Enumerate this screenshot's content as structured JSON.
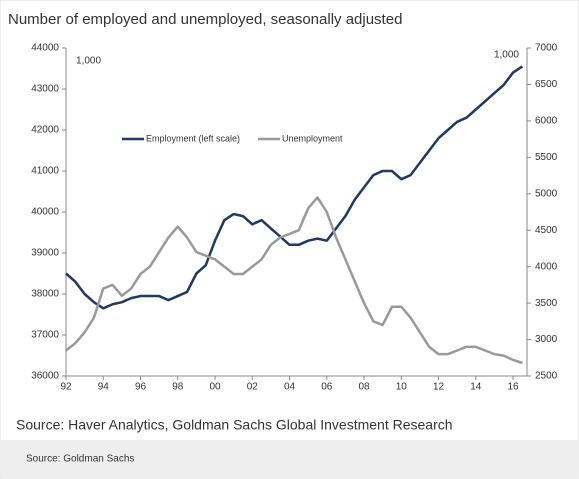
{
  "chart_data": {
    "type": "line",
    "title": "Number of employed and unemployed, seasonally adjusted",
    "unit_labels": [
      "1,000",
      "1,000"
    ],
    "source": "Source: Haver Analytics, Goldman Sachs Global Investment Research",
    "footer": "Source: Goldman Sachs",
    "x": [
      1992,
      1992.5,
      1993,
      1993.5,
      1994,
      1994.5,
      1995,
      1995.5,
      1996,
      1996.5,
      1997,
      1997.5,
      1998,
      1998.5,
      1999,
      1999.5,
      2000,
      2000.5,
      2001,
      2001.5,
      2002,
      2002.5,
      2003,
      2003.5,
      2004,
      2004.5,
      2005,
      2005.5,
      2006,
      2006.5,
      2007,
      2007.5,
      2008,
      2008.5,
      2009,
      2009.5,
      2010,
      2010.5,
      2011,
      2011.5,
      2012,
      2012.5,
      2013,
      2013.5,
      2014,
      2014.5,
      2015,
      2015.5,
      2016,
      2016.5
    ],
    "xlim": [
      1992,
      2016.75
    ],
    "xticks": [
      {
        "value": 1992,
        "label": "92"
      },
      {
        "value": 1994,
        "label": "94"
      },
      {
        "value": 1996,
        "label": "96"
      },
      {
        "value": 1998,
        "label": "98"
      },
      {
        "value": 2000,
        "label": "00"
      },
      {
        "value": 2002,
        "label": "02"
      },
      {
        "value": 2004,
        "label": "04"
      },
      {
        "value": 2006,
        "label": "06"
      },
      {
        "value": 2008,
        "label": "08"
      },
      {
        "value": 2010,
        "label": "10"
      },
      {
        "value": 2012,
        "label": "12"
      },
      {
        "value": 2014,
        "label": "14"
      },
      {
        "value": 2016,
        "label": "16"
      }
    ],
    "ylim": [
      36000,
      44000
    ],
    "yticks": [
      36000,
      37000,
      38000,
      39000,
      40000,
      41000,
      42000,
      43000,
      44000
    ],
    "y2lim": [
      2500,
      7000
    ],
    "y2ticks": [
      2500,
      3000,
      3500,
      4000,
      4500,
      5000,
      5500,
      6000,
      6500,
      7000
    ],
    "series": [
      {
        "name": "Employment (left scale)",
        "color": "#1f3864",
        "values": [
          38500,
          38300,
          38000,
          37800,
          37650,
          37750,
          37800,
          37900,
          37950,
          37950,
          37950,
          37850,
          37950,
          38050,
          38500,
          38700,
          39300,
          39800,
          39950,
          39900,
          39700,
          39800,
          39600,
          39400,
          39200,
          39200,
          39300,
          39350,
          39300,
          39600,
          39900,
          40300,
          40600,
          40900,
          41000,
          41000,
          40800,
          40900,
          41200,
          41500,
          41800,
          42000,
          42200,
          42300,
          42500,
          42700,
          42900,
          43100,
          43400,
          43550
        ]
      },
      {
        "name": "Unemployment",
        "color": "#999999",
        "axis": "y2",
        "values": [
          2850,
          2950,
          3100,
          3300,
          3700,
          3750,
          3600,
          3700,
          3900,
          4000,
          4200,
          4400,
          4550,
          4400,
          4200,
          4150,
          4100,
          4000,
          3900,
          3900,
          4000,
          4100,
          4300,
          4400,
          4450,
          4500,
          4800,
          4950,
          4750,
          4400,
          4100,
          3800,
          3500,
          3250,
          3200,
          3450,
          3450,
          3300,
          3100,
          2900,
          2800,
          2800,
          2850,
          2900,
          2900,
          2850,
          2800,
          2780,
          2720,
          2680
        ]
      }
    ]
  }
}
